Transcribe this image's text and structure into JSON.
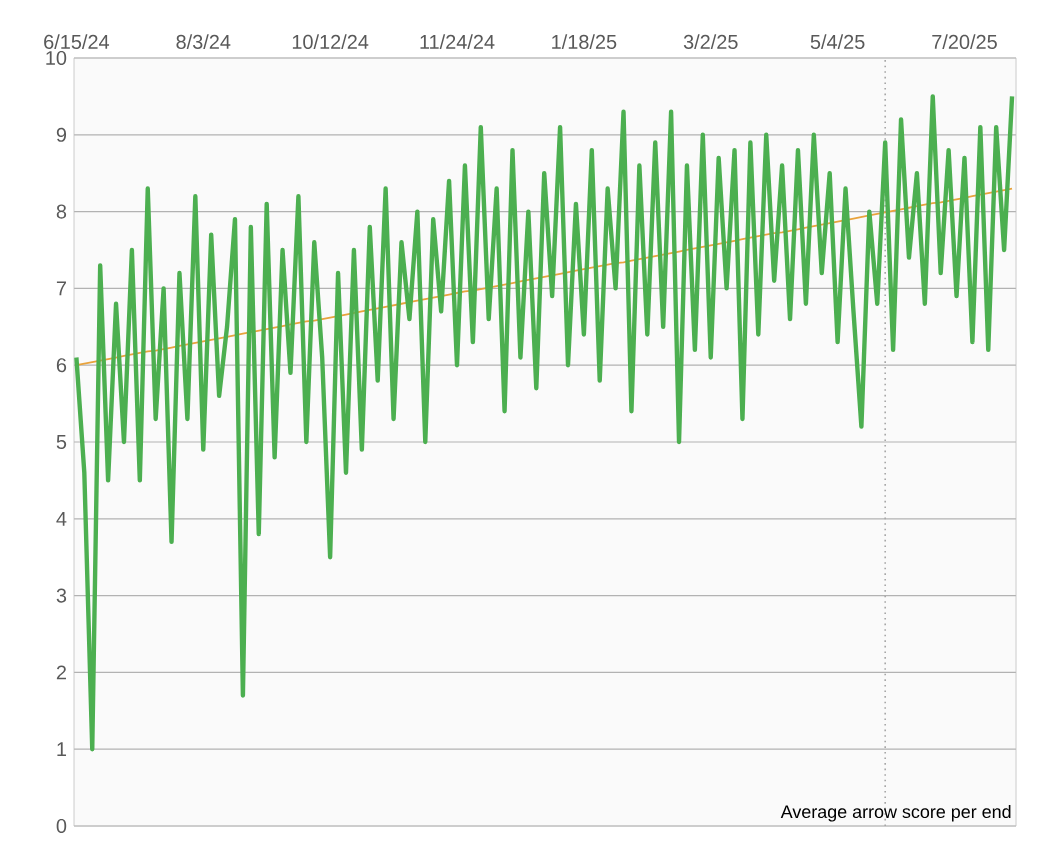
{
  "chart_data": {
    "type": "line",
    "annotations": [
      "Average arrow score per end"
    ],
    "categories": [
      "6/15/24",
      null,
      null,
      null,
      null,
      null,
      null,
      null,
      null,
      null,
      null,
      null,
      null,
      null,
      null,
      null,
      "8/3/24",
      null,
      null,
      null,
      null,
      null,
      null,
      null,
      null,
      null,
      null,
      null,
      null,
      null,
      null,
      null,
      "10/12/24",
      null,
      null,
      null,
      null,
      null,
      null,
      null,
      null,
      null,
      null,
      null,
      null,
      null,
      null,
      null,
      "11/24/24",
      null,
      null,
      null,
      null,
      null,
      null,
      null,
      null,
      null,
      null,
      null,
      null,
      null,
      null,
      null,
      "1/18/25",
      null,
      null,
      null,
      null,
      null,
      null,
      null,
      null,
      null,
      null,
      null,
      null,
      null,
      null,
      null,
      "3/2/25",
      null,
      null,
      null,
      null,
      null,
      null,
      null,
      null,
      null,
      null,
      null,
      null,
      null,
      null,
      null,
      "5/4/25",
      null,
      null,
      null,
      null,
      null,
      null,
      null,
      null,
      null,
      null,
      null,
      null,
      null,
      null,
      null,
      "7/20/25",
      null,
      null,
      null,
      null,
      null,
      null
    ],
    "series": [
      {
        "color": "#4caf50",
        "values": [
          6.1,
          4.6,
          1.0,
          7.3,
          4.5,
          6.8,
          5.0,
          7.5,
          4.5,
          8.3,
          5.3,
          7.0,
          3.7,
          7.2,
          5.3,
          8.2,
          4.9,
          7.7,
          5.6,
          6.5,
          7.9,
          1.7,
          7.8,
          3.8,
          8.1,
          4.8,
          7.5,
          5.9,
          8.2,
          5.0,
          7.6,
          6.1,
          3.5,
          7.2,
          4.6,
          7.5,
          4.9,
          7.8,
          5.8,
          8.3,
          5.3,
          7.6,
          6.6,
          8.0,
          5.0,
          7.9,
          6.7,
          8.4,
          6.0,
          8.6,
          6.3,
          9.1,
          6.6,
          8.3,
          5.4,
          8.8,
          6.1,
          8.0,
          5.7,
          8.5,
          6.9,
          9.1,
          6.0,
          8.1,
          6.4,
          8.8,
          5.8,
          8.3,
          7.0,
          9.3,
          5.4,
          8.6,
          6.4,
          8.9,
          6.5,
          9.3,
          5.0,
          8.6,
          6.2,
          9.0,
          6.1,
          8.7,
          7.0,
          8.8,
          5.3,
          8.9,
          6.4,
          9.0,
          7.1,
          8.6,
          6.6,
          8.8,
          6.8,
          9.0,
          7.2,
          8.5,
          6.3,
          8.3,
          6.7,
          5.2,
          8.0,
          6.8,
          8.9,
          6.2,
          9.2,
          7.4,
          8.5,
          6.8,
          9.5,
          7.2,
          8.8,
          6.9,
          8.7,
          6.3,
          9.1,
          6.2,
          9.1,
          7.5,
          9.5
        ]
      },
      {
        "type": "line",
        "color": "#e8a33d",
        "values": [
          6.0,
          6.02,
          6.04,
          6.06,
          6.08,
          6.1,
          6.12,
          6.14,
          6.16,
          6.18,
          6.19,
          6.21,
          6.23,
          6.25,
          6.27,
          6.29,
          6.31,
          6.33,
          6.35,
          6.37,
          6.39,
          6.41,
          6.43,
          6.45,
          6.47,
          6.49,
          6.51,
          6.53,
          6.55,
          6.57,
          6.58,
          6.6,
          6.62,
          6.64,
          6.66,
          6.68,
          6.7,
          6.72,
          6.74,
          6.76,
          6.78,
          6.8,
          6.82,
          6.84,
          6.86,
          6.88,
          6.9,
          6.92,
          6.94,
          6.96,
          6.97,
          6.99,
          7.01,
          7.03,
          7.05,
          7.07,
          7.09,
          7.11,
          7.13,
          7.15,
          7.17,
          7.19,
          7.21,
          7.23,
          7.25,
          7.27,
          7.29,
          7.31,
          7.33,
          7.34,
          7.36,
          7.38,
          7.4,
          7.42,
          7.44,
          7.46,
          7.48,
          7.5,
          7.52,
          7.54,
          7.56,
          7.58,
          7.6,
          7.62,
          7.64,
          7.66,
          7.68,
          7.7,
          7.72,
          7.73,
          7.75,
          7.77,
          7.79,
          7.81,
          7.83,
          7.85,
          7.87,
          7.89,
          7.91,
          7.93,
          7.95,
          7.97,
          7.99,
          8.01,
          8.03,
          8.05,
          8.07,
          8.09,
          8.11,
          8.12,
          8.14,
          8.16,
          8.18,
          8.2,
          8.22,
          8.24,
          8.26,
          8.28,
          8.3
        ]
      }
    ],
    "ylim": [
      0,
      10
    ],
    "yticks": [
      0,
      1,
      2,
      3,
      4,
      5,
      6,
      7,
      8,
      9,
      10
    ],
    "grid": "y"
  }
}
